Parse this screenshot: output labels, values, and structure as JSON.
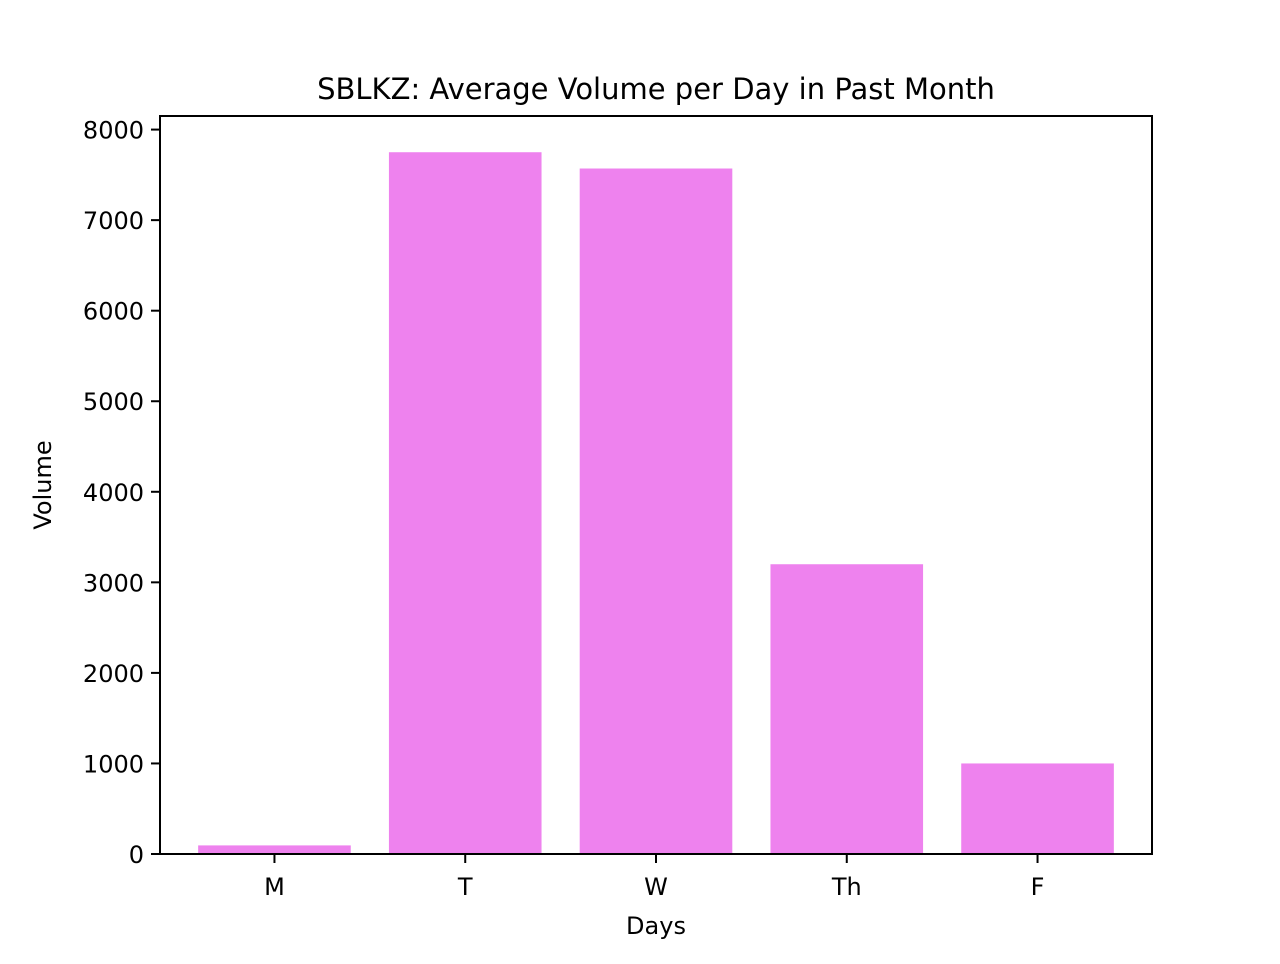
{
  "chart_data": {
    "type": "bar",
    "title": "SBLKZ: Average Volume per Day in Past Month",
    "xlabel": "Days",
    "ylabel": "Volume",
    "categories": [
      "M",
      "T",
      "W",
      "Th",
      "F"
    ],
    "values": [
      95,
      7750,
      7570,
      3200,
      1000
    ],
    "ylim": [
      0,
      8150
    ],
    "yticks": [
      0,
      1000,
      2000,
      3000,
      4000,
      5000,
      6000,
      7000,
      8000
    ],
    "bar_color": "#ee82ee",
    "grid": false,
    "legend": "none"
  }
}
